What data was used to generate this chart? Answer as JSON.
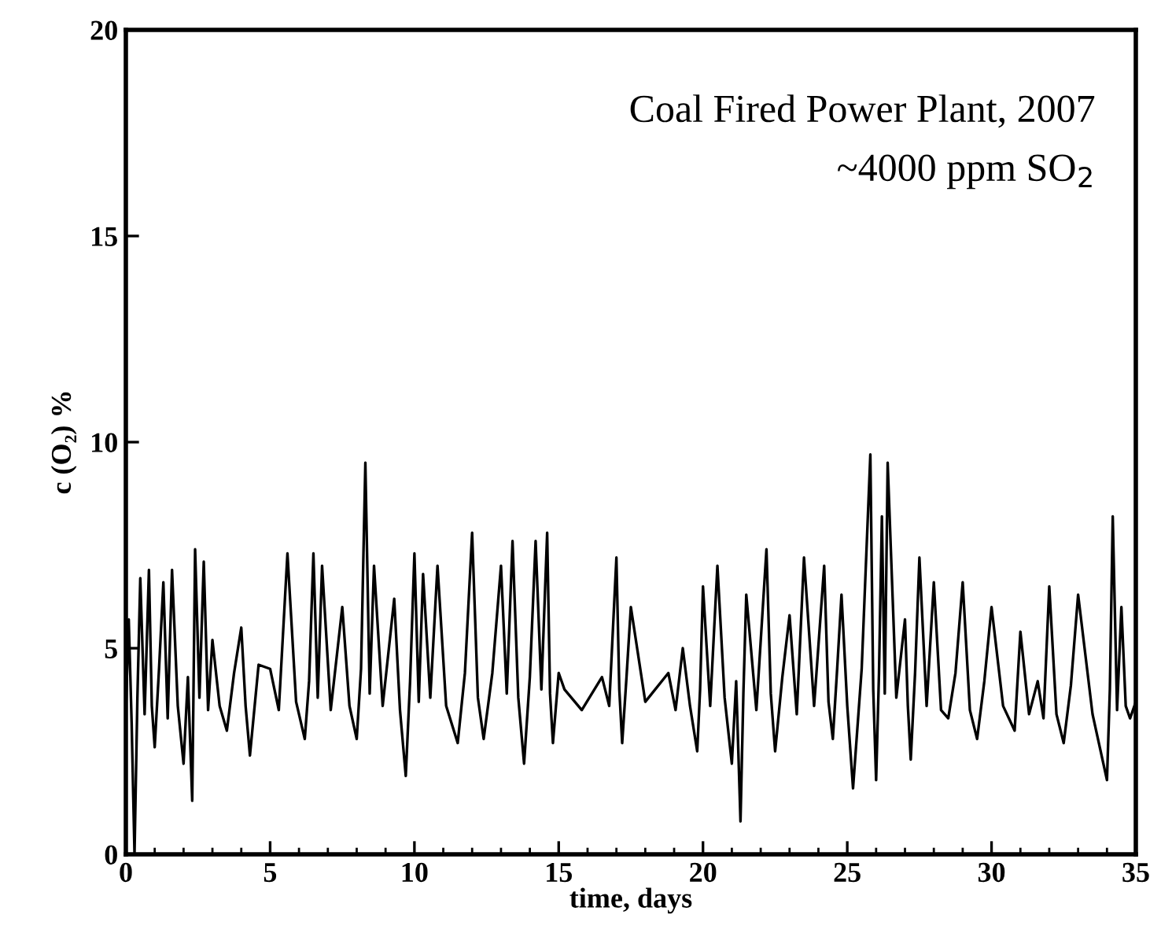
{
  "chart_data": {
    "type": "line",
    "xlabel": "time, days",
    "ylabel": "c (O₂) %",
    "annotations": [
      "Coal Fired Power Plant, 2007",
      "~4000 ppm SO$_{2}$"
    ],
    "xlim": [
      0,
      35
    ],
    "ylim": [
      0,
      20
    ],
    "xticks": [
      0,
      5,
      10,
      15,
      20,
      25,
      30,
      35
    ],
    "yticks": [
      0,
      5,
      10,
      15,
      20
    ],
    "grid": false,
    "legend": false,
    "marker": "none",
    "line_style": "solid",
    "series": [
      {
        "color": "#000000",
        "x": [
          0,
          0.1,
          0.2,
          0.3,
          0.4,
          0.5,
          0.65,
          0.8,
          0.9,
          1.0,
          1.15,
          1.3,
          1.45,
          1.6,
          1.8,
          2.0,
          2.15,
          2.3,
          2.4,
          2.55,
          2.7,
          2.85,
          3.0,
          3.25,
          3.5,
          3.75,
          4.0,
          4.15,
          4.3,
          4.6,
          5.0,
          5.3,
          5.6,
          5.9,
          6.2,
          6.35,
          6.5,
          6.65,
          6.8,
          7.1,
          7.5,
          7.75,
          8.0,
          8.15,
          8.3,
          8.45,
          8.6,
          8.9,
          9.3,
          9.5,
          9.7,
          9.85,
          10.0,
          10.15,
          10.3,
          10.55,
          10.8,
          11.1,
          11.5,
          11.75,
          12.0,
          12.2,
          12.4,
          12.7,
          13.0,
          13.2,
          13.4,
          13.6,
          13.8,
          14.0,
          14.2,
          14.4,
          14.6,
          14.7,
          14.8,
          15.0,
          15.2,
          15.8,
          16.5,
          16.75,
          17.0,
          17.1,
          17.2,
          17.35,
          17.5,
          18.0,
          18.8,
          19.05,
          19.3,
          19.55,
          19.8,
          19.9,
          20.0,
          20.25,
          20.5,
          20.75,
          21.0,
          21.15,
          21.3,
          21.4,
          21.5,
          21.85,
          22.2,
          22.35,
          22.5,
          22.75,
          23.0,
          23.25,
          23.5,
          23.85,
          24.2,
          24.35,
          24.5,
          24.65,
          24.8,
          25.0,
          25.2,
          25.5,
          25.8,
          25.9,
          26.0,
          26.1,
          26.2,
          26.3,
          26.4,
          26.7,
          27.0,
          27.1,
          27.2,
          27.35,
          27.5,
          27.75,
          28.0,
          28.25,
          28.5,
          28.75,
          29.0,
          29.25,
          29.5,
          29.75,
          30.0,
          30.4,
          30.8,
          30.9,
          31.0,
          31.3,
          31.6,
          31.8,
          32.0,
          32.25,
          32.5,
          32.75,
          33.0,
          33.5,
          34.0,
          34.1,
          34.2,
          34.35,
          34.5,
          34.65,
          34.8,
          35.0
        ],
        "values": [
          3.5,
          5.7,
          3.2,
          0,
          3.8,
          6.7,
          3.4,
          6.9,
          3.6,
          2.6,
          4.5,
          6.6,
          3.3,
          6.9,
          3.6,
          2.2,
          4.3,
          1.3,
          7.4,
          3.8,
          7.1,
          3.5,
          5.2,
          3.6,
          3.0,
          4.4,
          5.5,
          3.6,
          2.4,
          4.6,
          4.5,
          3.5,
          7.3,
          3.7,
          2.8,
          4.2,
          7.3,
          3.8,
          7.0,
          3.5,
          6.0,
          3.6,
          2.8,
          4.5,
          9.5,
          3.9,
          7.0,
          3.6,
          6.2,
          3.5,
          1.9,
          4.2,
          7.3,
          3.7,
          6.8,
          3.8,
          7.0,
          3.6,
          2.7,
          4.4,
          7.8,
          3.8,
          2.8,
          4.4,
          7.0,
          3.9,
          7.6,
          3.8,
          2.2,
          4.3,
          7.6,
          4.0,
          7.8,
          3.9,
          2.7,
          4.4,
          4.0,
          3.5,
          4.3,
          3.6,
          7.2,
          4.0,
          2.7,
          4.3,
          6.0,
          3.7,
          4.4,
          3.5,
          5.0,
          3.6,
          2.5,
          4.0,
          6.5,
          3.6,
          7.0,
          3.8,
          2.2,
          4.2,
          0.8,
          3.9,
          6.3,
          3.5,
          7.4,
          3.9,
          2.5,
          4.3,
          5.8,
          3.4,
          7.2,
          3.6,
          7.0,
          3.7,
          2.8,
          4.5,
          6.3,
          3.6,
          1.6,
          4.5,
          9.7,
          4.0,
          1.8,
          4.4,
          8.2,
          3.9,
          9.5,
          3.8,
          5.7,
          3.6,
          2.3,
          4.4,
          7.2,
          3.6,
          6.6,
          3.5,
          3.3,
          4.4,
          6.6,
          3.5,
          2.8,
          4.2,
          6.0,
          3.6,
          3.0,
          4.2,
          5.4,
          3.4,
          4.2,
          3.3,
          6.5,
          3.4,
          2.7,
          4.1,
          6.3,
          3.4,
          1.8,
          4.0,
          8.2,
          3.5,
          6.0,
          3.6,
          3.3,
          3.7
        ]
      }
    ]
  }
}
